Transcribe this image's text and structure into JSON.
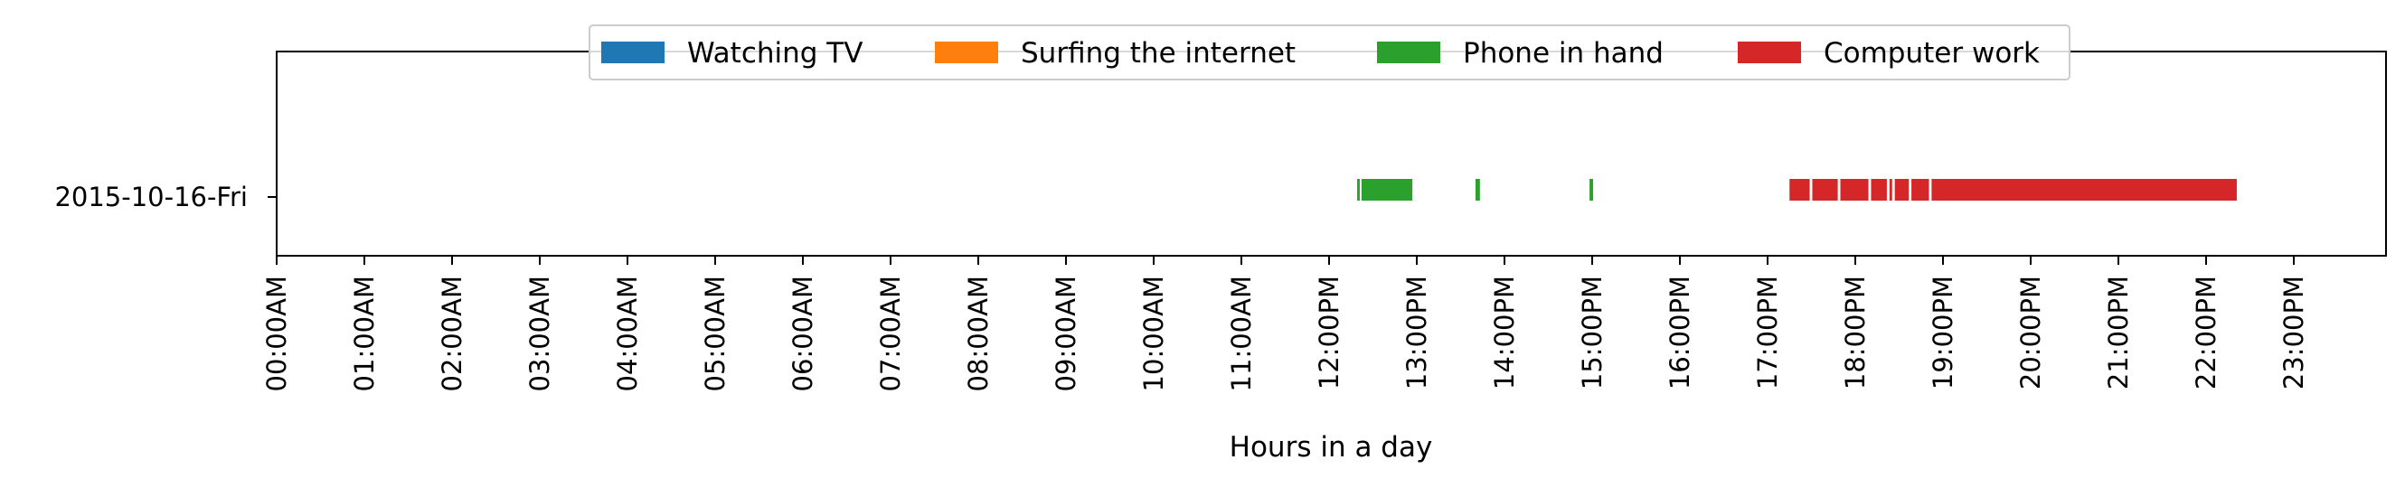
{
  "chart_data": {
    "type": "bar",
    "orientation": "horizontal",
    "categories": [
      "2015-10-16-Fri"
    ],
    "xlabel": "Hours in a day",
    "ylabel": "",
    "xlim": [
      0,
      24
    ],
    "x_ticks": [
      {
        "value": 0,
        "label": "00:00AM"
      },
      {
        "value": 1,
        "label": "01:00AM"
      },
      {
        "value": 2,
        "label": "02:00AM"
      },
      {
        "value": 3,
        "label": "03:00AM"
      },
      {
        "value": 4,
        "label": "04:00AM"
      },
      {
        "value": 5,
        "label": "05:00AM"
      },
      {
        "value": 6,
        "label": "06:00AM"
      },
      {
        "value": 7,
        "label": "07:00AM"
      },
      {
        "value": 8,
        "label": "08:00AM"
      },
      {
        "value": 9,
        "label": "09:00AM"
      },
      {
        "value": 10,
        "label": "10:00AM"
      },
      {
        "value": 11,
        "label": "11:00AM"
      },
      {
        "value": 12,
        "label": "12:00PM"
      },
      {
        "value": 13,
        "label": "13:00PM"
      },
      {
        "value": 14,
        "label": "14:00PM"
      },
      {
        "value": 15,
        "label": "15:00PM"
      },
      {
        "value": 16,
        "label": "16:00PM"
      },
      {
        "value": 17,
        "label": "17:00PM"
      },
      {
        "value": 18,
        "label": "18:00PM"
      },
      {
        "value": 19,
        "label": "19:00PM"
      },
      {
        "value": 20,
        "label": "20:00PM"
      },
      {
        "value": 21,
        "label": "21:00PM"
      },
      {
        "value": 22,
        "label": "22:00PM"
      },
      {
        "value": 23,
        "label": "23:00PM"
      }
    ],
    "legend_placement": "upper-center",
    "grid": false,
    "series": [
      {
        "name": "Watching TV",
        "color": "#1f77b4",
        "intervals": []
      },
      {
        "name": "Surfing the internet",
        "color": "#ff7f0e",
        "intervals": []
      },
      {
        "name": "Phone in hand",
        "color": "#2ca02c",
        "intervals": [
          {
            "category": "2015-10-16-Fri",
            "start": 12.32,
            "end": 12.35
          },
          {
            "category": "2015-10-16-Fri",
            "start": 12.37,
            "end": 12.95
          },
          {
            "category": "2015-10-16-Fri",
            "start": 13.67,
            "end": 13.72
          },
          {
            "category": "2015-10-16-Fri",
            "start": 14.97,
            "end": 15.01
          }
        ]
      },
      {
        "name": "Computer work",
        "color": "#d62728",
        "intervals": [
          {
            "category": "2015-10-16-Fri",
            "start": 17.25,
            "end": 17.48
          },
          {
            "category": "2015-10-16-Fri",
            "start": 17.51,
            "end": 17.8
          },
          {
            "category": "2015-10-16-Fri",
            "start": 17.83,
            "end": 18.15
          },
          {
            "category": "2015-10-16-Fri",
            "start": 18.18,
            "end": 18.36
          },
          {
            "category": "2015-10-16-Fri",
            "start": 18.39,
            "end": 18.42
          },
          {
            "category": "2015-10-16-Fri",
            "start": 18.45,
            "end": 18.61
          },
          {
            "category": "2015-10-16-Fri",
            "start": 18.64,
            "end": 18.84
          },
          {
            "category": "2015-10-16-Fri",
            "start": 18.87,
            "end": 22.35
          }
        ]
      }
    ]
  }
}
